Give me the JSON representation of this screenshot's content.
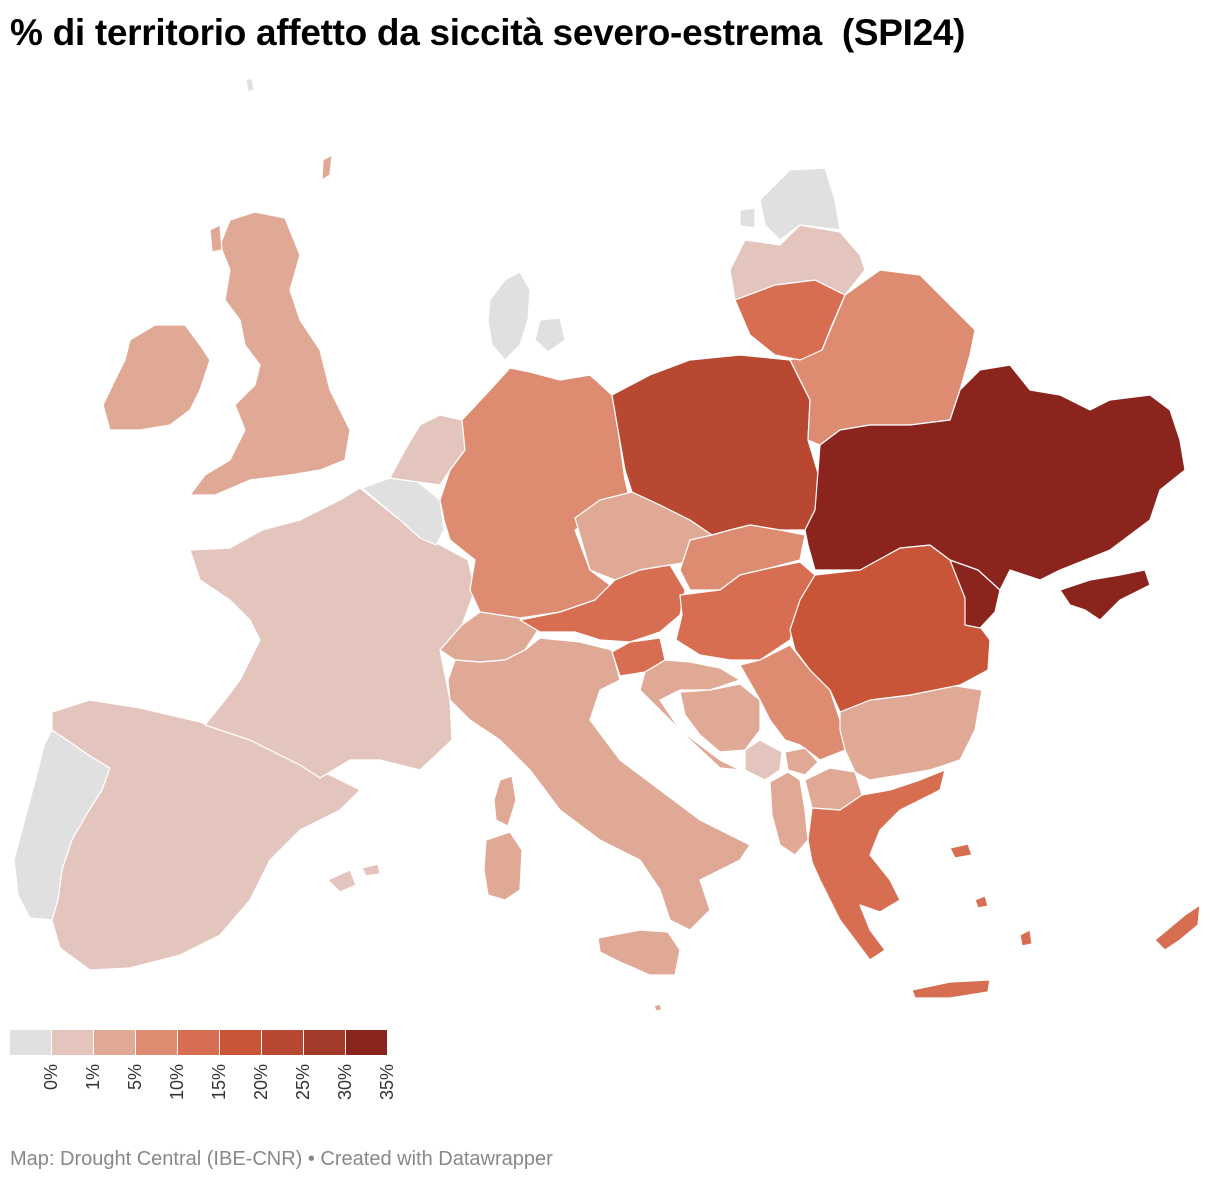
{
  "title": "% di territorio affetto da siccità severo-estrema  (SPI24)",
  "footer": "Map: Drought Central (IBE-CNR) • Created with Datawrapper",
  "legend": {
    "bins": [
      {
        "label": "0%",
        "color": "#e0e0e0"
      },
      {
        "label": "1%",
        "color": "#e4c5bd"
      },
      {
        "label": "5%",
        "color": "#e0a996"
      },
      {
        "label": "10%",
        "color": "#dd8c72"
      },
      {
        "label": "15%",
        "color": "#d76e52"
      },
      {
        "label": "20%",
        "color": "#c85538"
      },
      {
        "label": "25%",
        "color": "#b84832"
      },
      {
        "label": "30%",
        "color": "#a33a2a"
      },
      {
        "label": "35%",
        "color": "#8b241c"
      }
    ]
  },
  "regions": {
    "ukraine": "#8b241c",
    "moldova": "#8b241c",
    "poland": "#b84832",
    "romania": "#c85538",
    "lithuania": "#d76e52",
    "austria": "#d76e52",
    "hungary": "#d76e52",
    "greece": "#d76e52",
    "cyprus": "#d76e52",
    "slovenia": "#d76e52",
    "belarus": "#dd8c72",
    "germany": "#dd8c72",
    "slovakia": "#dd8c72",
    "serbia": "#dd8c72",
    "uk": "#e0a996",
    "ireland": "#e0a996",
    "czechia": "#e0a996",
    "switzerland": "#e0a996",
    "italy": "#e0a996",
    "croatia": "#e0a996",
    "bosnia": "#e0a996",
    "bulgaria": "#e0a996",
    "north_macedonia": "#e0a996",
    "albania": "#e0a996",
    "kosovo": "#e0a996",
    "corsica": "#e0a996",
    "sardinia": "#e0a996",
    "sicily": "#e0a996",
    "france": "#e4c5bd",
    "spain": "#e4c5bd",
    "latvia": "#e4c5bd",
    "netherlands": "#e4c5bd",
    "montenegro": "#e4c5bd",
    "estonia": "#e0e0e0",
    "denmark": "#e0e0e0",
    "belgium": "#e0e0e0",
    "portugal": "#e0e0e0"
  }
}
